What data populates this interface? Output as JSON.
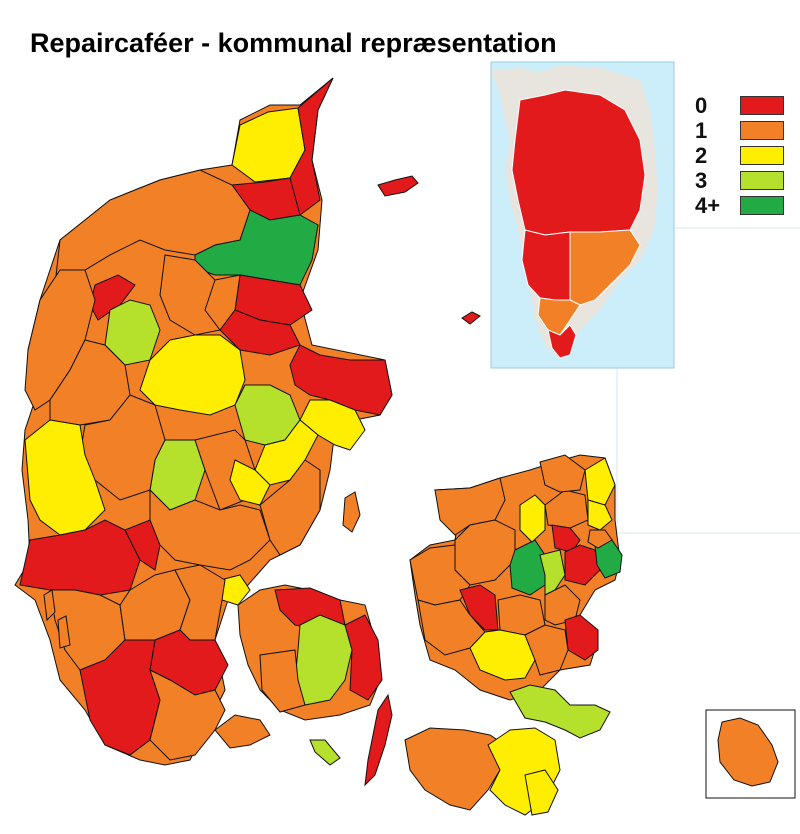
{
  "title": "Repaircaféer - kommunal repræsentation",
  "colors": {
    "c0": "#e31a1c",
    "c1": "#f28026",
    "c2": "#ffee00",
    "c3": "#b5e02b",
    "c4": "#22aa44",
    "sea": "#cbeefa",
    "border": "#111111"
  },
  "legend": [
    {
      "label": "0",
      "category": "c0"
    },
    {
      "label": "1",
      "category": "c1"
    },
    {
      "label": "2",
      "category": "c2"
    },
    {
      "label": "3",
      "category": "c3"
    },
    {
      "label": "4+",
      "category": "c4"
    }
  ],
  "insets": {
    "greenland": {
      "name": "greenland-inset"
    },
    "bornholm": {
      "name": "bornholm-inset"
    }
  }
}
